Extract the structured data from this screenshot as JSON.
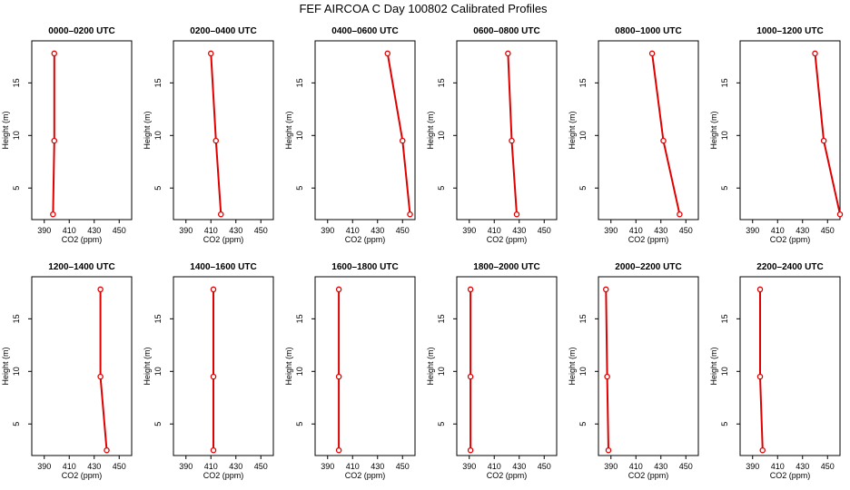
{
  "figure_title": "FEF AIRCOA C  Day 100802  Calibrated Profiles",
  "colors": {
    "profile": "#e00000",
    "axis": "#000000"
  },
  "chart_data": [
    {
      "type": "line",
      "title": "0000–0200 UTC",
      "xlabel": "CO2 (ppm)",
      "ylabel": "Height (m)",
      "xlim": [
        380,
        460
      ],
      "ylim": [
        2,
        19
      ],
      "x_ticks": [
        390,
        410,
        430,
        450
      ],
      "y_ticks": [
        5,
        10,
        15
      ],
      "series": [
        {
          "x": [
            397,
            398,
            398
          ],
          "y": [
            2.5,
            9.5,
            17.8
          ]
        }
      ]
    },
    {
      "type": "line",
      "title": "0200–0400 UTC",
      "xlabel": "CO2 (ppm)",
      "ylabel": "Height (m)",
      "xlim": [
        380,
        460
      ],
      "ylim": [
        2,
        19
      ],
      "x_ticks": [
        390,
        410,
        430,
        450
      ],
      "y_ticks": [
        5,
        10,
        15
      ],
      "series": [
        {
          "x": [
            418,
            414,
            410
          ],
          "y": [
            2.5,
            9.5,
            17.8
          ]
        }
      ]
    },
    {
      "type": "line",
      "title": "0400–0600 UTC",
      "xlabel": "CO2 (ppm)",
      "ylabel": "Height (m)",
      "xlim": [
        380,
        460
      ],
      "ylim": [
        2,
        19
      ],
      "x_ticks": [
        390,
        410,
        430,
        450
      ],
      "y_ticks": [
        5,
        10,
        15
      ],
      "series": [
        {
          "x": [
            456,
            450,
            438
          ],
          "y": [
            2.5,
            9.5,
            17.8
          ]
        }
      ]
    },
    {
      "type": "line",
      "title": "0600–0800 UTC",
      "xlabel": "CO2 (ppm)",
      "ylabel": "Height (m)",
      "xlim": [
        380,
        460
      ],
      "ylim": [
        2,
        19
      ],
      "x_ticks": [
        390,
        410,
        430,
        450
      ],
      "y_ticks": [
        5,
        10,
        15
      ],
      "series": [
        {
          "x": [
            428,
            424,
            421
          ],
          "y": [
            2.5,
            9.5,
            17.8
          ]
        }
      ]
    },
    {
      "type": "line",
      "title": "0800–1000 UTC",
      "xlabel": "CO2 (ppm)",
      "ylabel": "Height (m)",
      "xlim": [
        380,
        460
      ],
      "ylim": [
        2,
        19
      ],
      "x_ticks": [
        390,
        410,
        430,
        450
      ],
      "y_ticks": [
        5,
        10,
        15
      ],
      "series": [
        {
          "x": [
            445,
            432,
            423
          ],
          "y": [
            2.5,
            9.5,
            17.8
          ]
        }
      ]
    },
    {
      "type": "line",
      "title": "1000–1200 UTC",
      "xlabel": "CO2 (ppm)",
      "ylabel": "Height (m)",
      "xlim": [
        380,
        460
      ],
      "ylim": [
        2,
        19
      ],
      "x_ticks": [
        390,
        410,
        430,
        450
      ],
      "y_ticks": [
        5,
        10,
        15
      ],
      "series": [
        {
          "x": [
            460,
            447,
            440
          ],
          "y": [
            2.5,
            9.5,
            17.8
          ]
        }
      ]
    },
    {
      "type": "line",
      "title": "1200–1400 UTC",
      "xlabel": "CO2 (ppm)",
      "ylabel": "Height (m)",
      "xlim": [
        380,
        460
      ],
      "ylim": [
        2,
        19
      ],
      "x_ticks": [
        390,
        410,
        430,
        450
      ],
      "y_ticks": [
        5,
        10,
        15
      ],
      "series": [
        {
          "x": [
            440,
            435,
            435
          ],
          "y": [
            2.5,
            9.5,
            17.8
          ]
        }
      ]
    },
    {
      "type": "line",
      "title": "1400–1600 UTC",
      "xlabel": "CO2 (ppm)",
      "ylabel": "Height (m)",
      "xlim": [
        380,
        460
      ],
      "ylim": [
        2,
        19
      ],
      "x_ticks": [
        390,
        410,
        430,
        450
      ],
      "y_ticks": [
        5,
        10,
        15
      ],
      "series": [
        {
          "x": [
            412,
            412,
            412
          ],
          "y": [
            2.5,
            9.5,
            17.8
          ]
        }
      ]
    },
    {
      "type": "line",
      "title": "1600–1800 UTC",
      "xlabel": "CO2 (ppm)",
      "ylabel": "Height (m)",
      "xlim": [
        380,
        460
      ],
      "ylim": [
        2,
        19
      ],
      "x_ticks": [
        390,
        410,
        430,
        450
      ],
      "y_ticks": [
        5,
        10,
        15
      ],
      "series": [
        {
          "x": [
            399,
            399,
            399
          ],
          "y": [
            2.5,
            9.5,
            17.8
          ]
        }
      ]
    },
    {
      "type": "line",
      "title": "1800–2000 UTC",
      "xlabel": "CO2 (ppm)",
      "ylabel": "Height (m)",
      "xlim": [
        380,
        460
      ],
      "ylim": [
        2,
        19
      ],
      "x_ticks": [
        390,
        410,
        430,
        450
      ],
      "y_ticks": [
        5,
        10,
        15
      ],
      "series": [
        {
          "x": [
            391,
            391,
            391
          ],
          "y": [
            2.5,
            9.5,
            17.8
          ]
        }
      ]
    },
    {
      "type": "line",
      "title": "2000–2200 UTC",
      "xlabel": "CO2 (ppm)",
      "ylabel": "Height (m)",
      "xlim": [
        380,
        460
      ],
      "ylim": [
        2,
        19
      ],
      "x_ticks": [
        390,
        410,
        430,
        450
      ],
      "y_ticks": [
        5,
        10,
        15
      ],
      "series": [
        {
          "x": [
            388,
            387,
            386
          ],
          "y": [
            2.5,
            9.5,
            17.8
          ]
        }
      ]
    },
    {
      "type": "line",
      "title": "2200–2400 UTC",
      "xlabel": "CO2 (ppm)",
      "ylabel": "Height (m)",
      "xlim": [
        380,
        460
      ],
      "ylim": [
        2,
        19
      ],
      "x_ticks": [
        390,
        410,
        430,
        450
      ],
      "y_ticks": [
        5,
        10,
        15
      ],
      "series": [
        {
          "x": [
            398,
            396,
            396
          ],
          "y": [
            2.5,
            9.5,
            17.8
          ]
        }
      ]
    }
  ]
}
